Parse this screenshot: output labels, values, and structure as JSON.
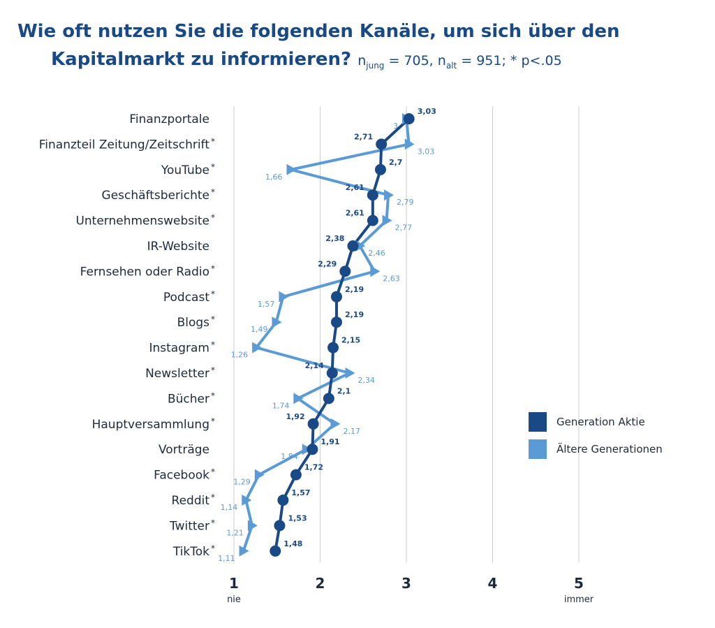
{
  "title_line1": "Wie oft nutzen Sie die folgenden Kanäle, um sich über den",
  "title_line2": "Kapitalmarkt zu informieren?",
  "subtitle": {
    "n_prefix": "n",
    "n_jung_sub": "jung",
    "n_jung_val": " = 705, n",
    "n_alt_sub": "alt",
    "n_alt_val": " = 951; * p<.05"
  },
  "chart_data": {
    "type": "line",
    "orientation": "horizontal",
    "categories": [
      "Finanzportale",
      "Finanzteil Zeitung/Zeitschrift",
      "YouTube",
      "Geschäftsberichte",
      "Unternehmenswebsite",
      "IR-Website",
      "Fernsehen oder Radio",
      "Podcast",
      "Blogs",
      "Instagram",
      "Newsletter",
      "Bücher",
      "Hauptversammlung",
      "Vorträge",
      "Facebook",
      "Reddit",
      "Twitter",
      "TikTok"
    ],
    "significant": [
      false,
      true,
      true,
      true,
      true,
      false,
      true,
      true,
      true,
      true,
      true,
      true,
      true,
      false,
      true,
      true,
      true,
      true
    ],
    "series": [
      {
        "name": "Generation Aktie",
        "color": "#1a4a85",
        "marker": "circle",
        "values": [
          3.03,
          2.71,
          2.7,
          2.61,
          2.61,
          2.38,
          2.29,
          2.19,
          2.19,
          2.15,
          2.14,
          2.1,
          1.92,
          1.91,
          1.72,
          1.57,
          1.53,
          1.48
        ],
        "labels": [
          "3,03",
          "2,71",
          "2,7",
          "2,61",
          "2,61",
          "2,38",
          "2,29",
          "2,19",
          "2,19",
          "2,15",
          "2,14",
          "2,1",
          "1,92",
          "1,91",
          "1,72",
          "1,57",
          "1,53",
          "1,48"
        ]
      },
      {
        "name": "Ältere Generationen",
        "color": "#5b9bd5",
        "marker": "triangle",
        "values": [
          3,
          3.03,
          1.66,
          2.79,
          2.77,
          2.46,
          2.63,
          1.57,
          1.49,
          1.26,
          2.34,
          1.74,
          2.17,
          1.84,
          1.29,
          1.14,
          1.21,
          1.11
        ],
        "labels": [
          "3",
          "3,03",
          "1,66",
          "2,79",
          "2,77",
          "2,46",
          "2,63",
          "1,57",
          "1,49",
          "1,26",
          "2,34",
          "1,74",
          "2,17",
          "1,84",
          "1,29",
          "1,14",
          "1,21",
          "1,11"
        ]
      }
    ],
    "xlim": [
      1,
      5
    ],
    "xticks": [
      "1",
      "2",
      "3",
      "4",
      "5"
    ],
    "xtick_sublabels": {
      "1": "nie",
      "5": "immer"
    },
    "grid": true,
    "legend_position": "right"
  }
}
